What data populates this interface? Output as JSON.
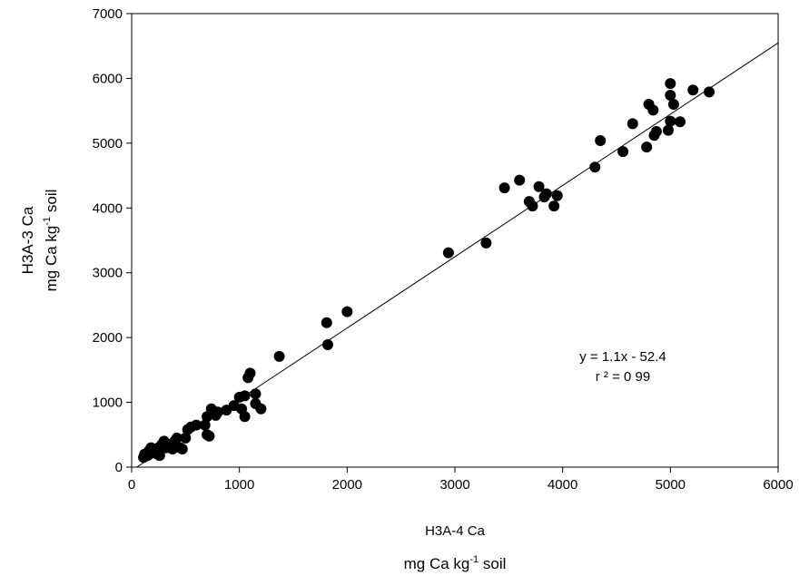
{
  "chart_data": {
    "type": "scatter",
    "xlabel": [
      "H3A-4 Ca",
      "mg Ca kg",
      "-1",
      " soil"
    ],
    "ylabel": [
      "H3A-3 Ca",
      "mg Ca kg",
      "-1",
      " soil"
    ],
    "annotations": [
      "y = 1.1x - 52.4",
      "r ² = 0 99"
    ],
    "trendline": {
      "slope": 1.1,
      "intercept": -52.4,
      "color": "#000000"
    },
    "color": "#000000",
    "xlim": [
      0,
      6000
    ],
    "xticks": [
      0,
      1000,
      2000,
      3000,
      4000,
      5000,
      6000
    ],
    "ylim": [
      0,
      7000
    ],
    "yticks": [
      0,
      1000,
      2000,
      3000,
      4000,
      5000,
      6000,
      7000
    ],
    "grid": false,
    "x": [
      110,
      120,
      150,
      160,
      180,
      200,
      220,
      240,
      250,
      260,
      280,
      300,
      320,
      350,
      380,
      400,
      420,
      450,
      470,
      500,
      520,
      550,
      600,
      680,
      700,
      720,
      700,
      740,
      780,
      800,
      880,
      950,
      1000,
      1050,
      1050,
      1020,
      1080,
      1100,
      1150,
      1150,
      1200,
      1370,
      1810,
      1820,
      2000,
      2940,
      3290,
      3460,
      3600,
      3690,
      3720,
      3780,
      3830,
      3850,
      3920,
      3950,
      4300,
      4350,
      4560,
      4650,
      4780,
      4800,
      4840,
      4850,
      4870,
      4980,
      5000,
      5000,
      5000,
      5030,
      5090,
      5210,
      5360
    ],
    "y": [
      150,
      200,
      180,
      250,
      300,
      220,
      280,
      200,
      300,
      180,
      350,
      400,
      300,
      350,
      280,
      400,
      450,
      300,
      280,
      450,
      580,
      620,
      650,
      650,
      500,
      480,
      780,
      900,
      800,
      850,
      880,
      950,
      1080,
      1100,
      780,
      900,
      1380,
      1450,
      1130,
      980,
      900,
      1710,
      2230,
      1890,
      2400,
      3310,
      3460,
      4310,
      4430,
      4100,
      4030,
      4330,
      4170,
      4220,
      4030,
      4190,
      4630,
      5040,
      4870,
      5300,
      4940,
      5600,
      5510,
      5120,
      5180,
      5200,
      5920,
      5740,
      5340,
      5600,
      5330,
      5820,
      5790
    ]
  }
}
